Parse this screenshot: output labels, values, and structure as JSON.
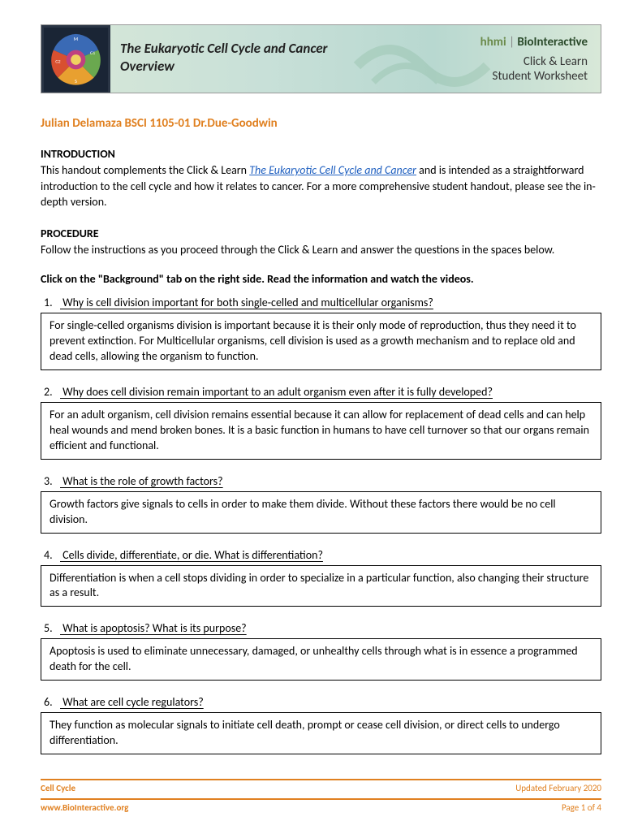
{
  "banner": {
    "title_line1": "The Eukaryotic Cell Cycle and Cancer",
    "title_line2": "Overview",
    "hhmi": "hhmi",
    "biointeractive": "BioInteractive",
    "sub1": "Click & Learn",
    "sub2": "Student Worksheet",
    "logo_colors": {
      "bg": "#1a2535",
      "m": "#3a6ab5",
      "g1": "#6aa84f",
      "s": "#e8a030",
      "g2": "#d85030",
      "center": "#c04080",
      "inner": "#f0d060"
    }
  },
  "student_line": "Julian Delamaza BSCI 1105-01 Dr.Due-Goodwin",
  "intro": {
    "heading": "INTRODUCTION",
    "pre_link": "This handout complements the Click & Learn ",
    "link_text": "The Eukaryotic Cell Cycle and Cancer",
    "post_link": " and is intended as a straightforward introduction to the cell cycle and how it relates to cancer. For a more comprehensive student handout, please see the in-depth version."
  },
  "procedure": {
    "heading": "PROCEDURE",
    "text": "Follow the instructions as you proceed through the Click & Learn and answer the questions in the spaces below."
  },
  "instruction": "Click on the \"Background\" tab on the right side. Read the information and watch the videos.",
  "questions": [
    {
      "num": "1.",
      "q": "Why is cell division important for both single-celled and multicellular organisms?",
      "a": "For single-celled organisms division is important because it is their only mode of reproduction, thus they need it to prevent extinction. For Multicellular organisms, cell division is used as a growth mechanism and to replace old and dead cells, allowing the organism to function."
    },
    {
      "num": "2.",
      "q": "Why does cell division remain important to an adult organism even after it is fully developed?",
      "a": "For an adult organism, cell division remains essential because it can allow for replacement of dead cells and can help heal wounds and mend broken bones. It is a basic function in humans to have cell turnover so that our organs remain efficient and functional."
    },
    {
      "num": "3.",
      "q": "What is the role of growth factors?",
      "a": "Growth factors give signals to cells in order to make them divide. Without these factors there would be no cell division."
    },
    {
      "num": "4.",
      "q": "Cells divide, differentiate, or die. What is differentiation?",
      "a": "Differentiation is when a cell stops dividing in order to specialize in a particular function, also changing their structure as a result."
    },
    {
      "num": "5.",
      "q": "What is apoptosis? What is its purpose?",
      "a": "Apoptosis is used to eliminate unnecessary, damaged, or unhealthy cells through what is in essence a programmed death for the cell."
    },
    {
      "num": "6.",
      "q": "What are cell cycle regulators?",
      "a": "They function as molecular signals to initiate cell death, prompt or cease cell division, or direct cells to undergo differentiation."
    }
  ],
  "footer": {
    "left1": "Cell Cycle",
    "right1": "Updated February 2020",
    "left2": "www.BioInteractive.org",
    "right2": "Page 1 of 4"
  }
}
